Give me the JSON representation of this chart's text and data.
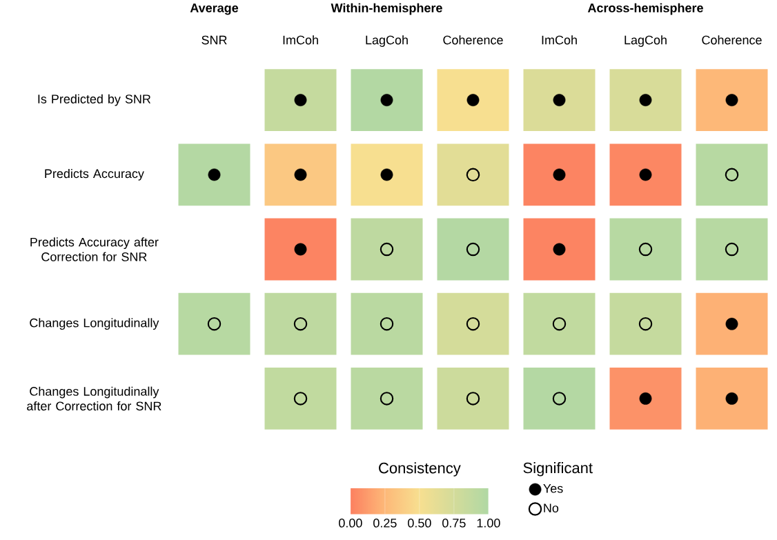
{
  "chart_data": {
    "type": "heatmap",
    "categories": [
      "SNR",
      "ImCoh",
      "LagCoh",
      "Coherence",
      "ImCoh",
      "LagCoh",
      "Coherence"
    ],
    "y_categories": [
      "Is Predicted by SNR",
      "Predicts Accuracy",
      "Predicts Accuracy after Correction for SNR",
      "Changes Longitudinally",
      "Changes Longitudinally after Correction for SNR"
    ],
    "cells": [
      [
        null,
        0.85,
        0.98,
        0.5,
        0.7,
        0.72,
        0.25
      ],
      [
        0.97,
        0.35,
        0.5,
        0.65,
        0.02,
        0.03,
        0.95
      ],
      [
        null,
        0.02,
        0.9,
        0.97,
        0.02,
        0.95,
        0.95
      ],
      [
        0.95,
        0.9,
        0.93,
        0.75,
        0.88,
        0.85,
        0.22
      ],
      [
        null,
        0.88,
        0.93,
        0.8,
        0.97,
        0.08,
        0.22
      ]
    ],
    "clabel": "Consistency",
    "clim": [
      0,
      1
    ],
    "cticks": [
      {
        "value": 0,
        "label": "0.00"
      },
      {
        "value": 0.25,
        "label": "0.25"
      },
      {
        "value": 0.5,
        "label": "0.50"
      },
      {
        "value": 0.75,
        "label": "0.75"
      },
      {
        "value": 1,
        "label": "1.00"
      }
    ],
    "annotations": [
      "Average",
      "Within-hemisphere",
      "Across-hemisphere"
    ],
    "legend_title": "Significant",
    "legend": "bottom",
    "series": [
      {
        "name": "Yes",
        "type": "scatter",
        "marker": "circle",
        "color": "#000000",
        "values": [
          null,
          0,
          0,
          0,
          0,
          0,
          0
        ]
      },
      {
        "type": "scatter",
        "marker": "circle",
        "color": "#000000",
        "values": [
          1,
          1,
          1,
          null,
          1,
          1,
          null
        ]
      },
      {
        "type": "scatter",
        "marker": "circle",
        "color": "#000000",
        "values": [
          null,
          2,
          null,
          null,
          2,
          null,
          null
        ]
      },
      {
        "type": "scatter",
        "marker": "circle",
        "color": "#000000",
        "values": [
          null,
          null,
          null,
          null,
          null,
          null,
          3
        ]
      },
      {
        "type": "scatter",
        "marker": "circle",
        "color": "#000000",
        "values": [
          null,
          null,
          null,
          null,
          null,
          4,
          4
        ]
      },
      {
        "name": "No",
        "type": "scatter",
        "marker": "open circle",
        "color": "#000000",
        "values": [
          null,
          null,
          null,
          1,
          null,
          null,
          1
        ]
      },
      {
        "type": "scatter",
        "marker": "open circle",
        "color": "#000000",
        "values": [
          null,
          null,
          2,
          2,
          null,
          2,
          2
        ]
      },
      {
        "type": "scatter",
        "marker": "open circle",
        "color": "#000000",
        "values": [
          3,
          3,
          3,
          3,
          3,
          3,
          null
        ]
      },
      {
        "type": "scatter",
        "marker": "open circle",
        "color": "#000000",
        "values": [
          null,
          4,
          4,
          4,
          4,
          null,
          null
        ]
      }
    ]
  }
}
